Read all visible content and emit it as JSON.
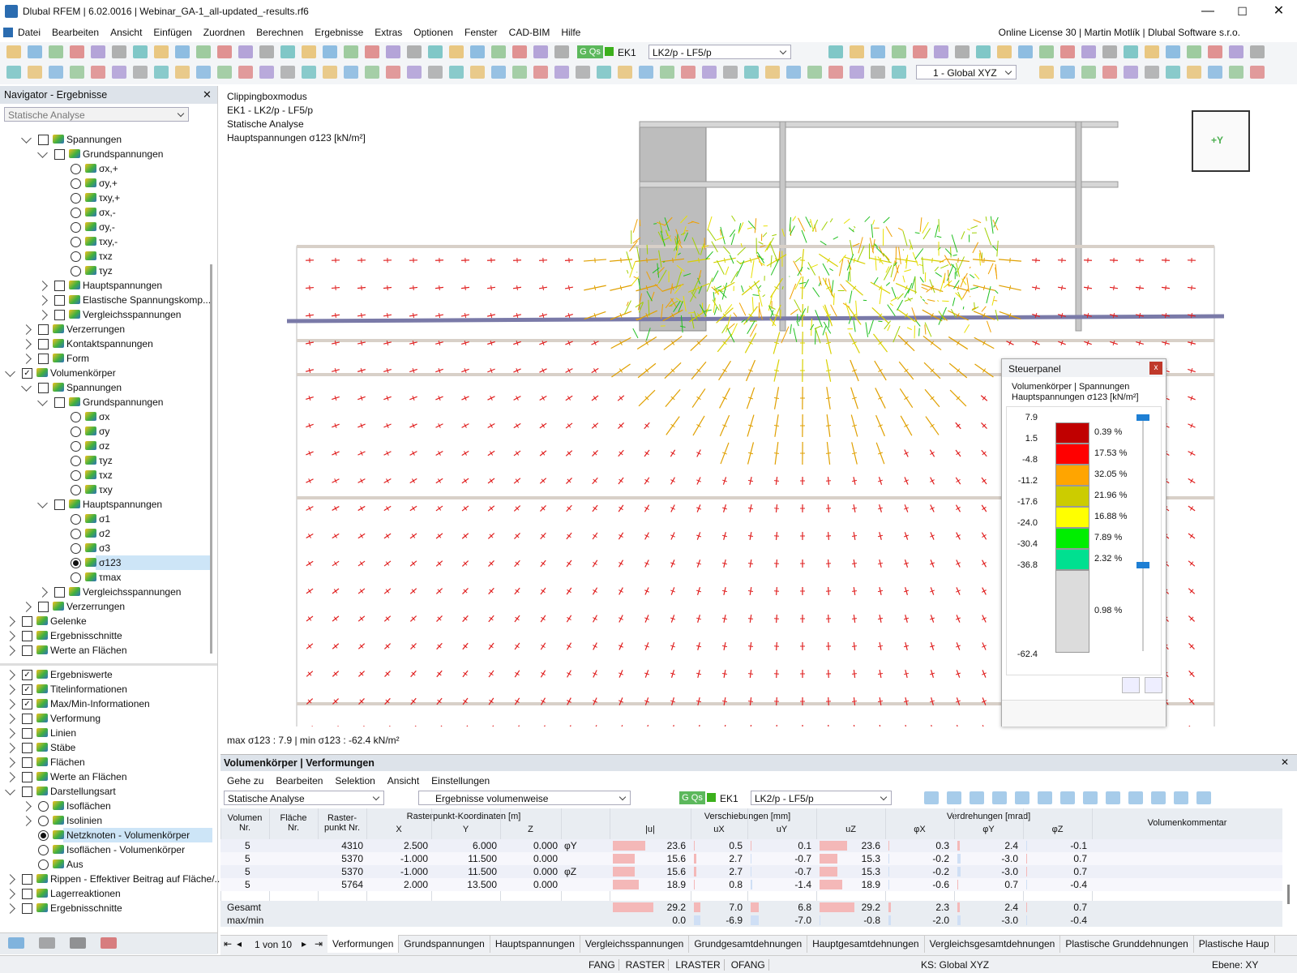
{
  "window": {
    "title": "Dlubal RFEM | 6.02.0016 | Webinar_GA-1_all-updated_-results.rf6"
  },
  "menu": {
    "items": [
      "Datei",
      "Bearbeiten",
      "Ansicht",
      "Einfügen",
      "Zuordnen",
      "Berechnen",
      "Ergebnisse",
      "Extras",
      "Optionen",
      "Fenster",
      "CAD-BIM",
      "Hilfe"
    ],
    "license": "Online License 30 | Martin Motlík | Dlubal Software s.r.o."
  },
  "toolbar": {
    "group": "G Qs",
    "combination": "EK1",
    "load_case": "LK2/p - LF5/p",
    "coordinate_system": "1 - Global XYZ"
  },
  "navigator": {
    "title": "Navigator - Ergebnisse",
    "analysis": "Statische Analyse",
    "tree": [
      {
        "label": "Spannungen",
        "level": 1,
        "exp": "open",
        "box": "off"
      },
      {
        "label": "Grundspannungen",
        "level": 2,
        "exp": "open",
        "box": "off"
      },
      {
        "label": "σx,+",
        "level": 3,
        "box": "radio"
      },
      {
        "label": "σy,+",
        "level": 3,
        "box": "radio"
      },
      {
        "label": "τxy,+",
        "level": 3,
        "box": "radio"
      },
      {
        "label": "σx,-",
        "level": 3,
        "box": "radio"
      },
      {
        "label": "σy,-",
        "level": 3,
        "box": "radio"
      },
      {
        "label": "τxy,-",
        "level": 3,
        "box": "radio"
      },
      {
        "label": "τxz",
        "level": 3,
        "box": "radio"
      },
      {
        "label": "τyz",
        "level": 3,
        "box": "radio"
      },
      {
        "label": "Hauptspannungen",
        "level": 2,
        "exp": "closed",
        "box": "off"
      },
      {
        "label": "Elastische Spannungskomp...",
        "level": 2,
        "exp": "closed",
        "box": "off"
      },
      {
        "label": "Vergleichsspannungen",
        "level": 2,
        "exp": "closed",
        "box": "off"
      },
      {
        "label": "Verzerrungen",
        "level": 1,
        "exp": "closed",
        "box": "off"
      },
      {
        "label": "Kontaktspannungen",
        "level": 1,
        "exp": "closed",
        "box": "off"
      },
      {
        "label": "Form",
        "level": 1,
        "exp": "closed",
        "box": "off"
      },
      {
        "label": "Volumenkörper",
        "level": 0,
        "exp": "open",
        "box": "on"
      },
      {
        "label": "Spannungen",
        "level": 1,
        "exp": "open",
        "box": "off"
      },
      {
        "label": "Grundspannungen",
        "level": 2,
        "exp": "open",
        "box": "off"
      },
      {
        "label": "σx",
        "level": 3,
        "box": "radio"
      },
      {
        "label": "σy",
        "level": 3,
        "box": "radio"
      },
      {
        "label": "σz",
        "level": 3,
        "box": "radio"
      },
      {
        "label": "τyz",
        "level": 3,
        "box": "radio"
      },
      {
        "label": "τxz",
        "level": 3,
        "box": "radio"
      },
      {
        "label": "τxy",
        "level": 3,
        "box": "radio"
      },
      {
        "label": "Hauptspannungen",
        "level": 2,
        "exp": "open",
        "box": "off"
      },
      {
        "label": "σ1",
        "level": 3,
        "box": "radio"
      },
      {
        "label": "σ2",
        "level": 3,
        "box": "radio"
      },
      {
        "label": "σ3",
        "level": 3,
        "box": "radio"
      },
      {
        "label": "σ123",
        "level": 3,
        "box": "radio-on",
        "selected": true
      },
      {
        "label": "τmax",
        "level": 3,
        "box": "radio"
      },
      {
        "label": "Vergleichsspannungen",
        "level": 2,
        "exp": "closed",
        "box": "off"
      },
      {
        "label": "Verzerrungen",
        "level": 1,
        "exp": "closed",
        "box": "off"
      },
      {
        "label": "Gelenke",
        "level": 0,
        "exp": "closed",
        "box": "off"
      },
      {
        "label": "Ergebnisschnitte",
        "level": 0,
        "exp": "closed",
        "box": "off"
      },
      {
        "label": "Werte an Flächen",
        "level": 0,
        "exp": "closed",
        "box": "off"
      }
    ],
    "display": [
      {
        "label": "Ergebniswerte",
        "level": 0,
        "exp": "closed",
        "box": "on"
      },
      {
        "label": "Titelinformationen",
        "level": 0,
        "exp": "closed",
        "box": "on"
      },
      {
        "label": "Max/Min-Informationen",
        "level": 0,
        "exp": "closed",
        "box": "on"
      },
      {
        "label": "Verformung",
        "level": 0,
        "exp": "closed",
        "box": "off"
      },
      {
        "label": "Linien",
        "level": 0,
        "exp": "closed",
        "box": "off"
      },
      {
        "label": "Stäbe",
        "level": 0,
        "exp": "closed",
        "box": "off"
      },
      {
        "label": "Flächen",
        "level": 0,
        "exp": "closed",
        "box": "off"
      },
      {
        "label": "Werte an Flächen",
        "level": 0,
        "exp": "closed",
        "box": "off"
      },
      {
        "label": "Darstellungsart",
        "level": 0,
        "exp": "open",
        "box": "off"
      },
      {
        "label": "Isoflächen",
        "level": 1,
        "exp": "closed",
        "box": "radio"
      },
      {
        "label": "Isolinien",
        "level": 1,
        "exp": "closed",
        "box": "radio"
      },
      {
        "label": "Netzknoten - Volumenkörper",
        "level": 1,
        "box": "radio-on",
        "selected": true
      },
      {
        "label": "Isoflächen - Volumenkörper",
        "level": 1,
        "box": "radio"
      },
      {
        "label": "Aus",
        "level": 1,
        "box": "radio"
      },
      {
        "label": "Rippen - Effektiver Beitrag auf Fläche/...",
        "level": 0,
        "exp": "closed",
        "box": "off"
      },
      {
        "label": "Lagerreaktionen",
        "level": 0,
        "exp": "closed",
        "box": "off"
      },
      {
        "label": "Ergebnisschnitte",
        "level": 0,
        "exp": "closed",
        "box": "off"
      }
    ]
  },
  "viewport": {
    "info": [
      "Clippingboxmodus",
      "EK1 - LK2/p - LF5/p",
      "Statische Analyse",
      "Hauptspannungen σ123 [kN/m²]"
    ],
    "maxmin": "max σ123 : 7.9 | min σ123 : -62.4 kN/m²",
    "view_cube": "+Y"
  },
  "panel": {
    "title": "Steuerpanel",
    "subtitle": [
      "Volumenkörper | Spannungen",
      "Hauptspannungen σ123 [kN/m²]"
    ],
    "levels": [
      "7.9",
      "1.5",
      "-4.8",
      "-11.2",
      "-17.6",
      "-24.0",
      "-30.4",
      "-36.8",
      "-62.4"
    ],
    "colors": [
      "#c00000",
      "#ff0000",
      "#ffa500",
      "#cccc00",
      "#ffff00",
      "#00ee00",
      "#00e090",
      "#dcdcdc"
    ],
    "shares": [
      "0.39 %",
      "17.53 %",
      "32.05 %",
      "21.96 %",
      "16.88 %",
      "7.89 %",
      "2.32 %",
      "0.98 %"
    ]
  },
  "table": {
    "title": "Volumenkörper | Verformungen",
    "menu": [
      "Gehe zu",
      "Bearbeiten",
      "Selektion",
      "Ansicht",
      "Einstellungen"
    ],
    "analysis": "Statische Analyse",
    "mode": "Ergebnisse volumenweise",
    "group": "G Qs",
    "combination": "EK1",
    "load_case": "LK2/p - LF5/p",
    "headers": {
      "volume": "Volumen\nNr.",
      "surface": "Fläche\nNr.",
      "point": "Raster-\npunkt Nr.",
      "coords": "Rasterpunkt-Koordinaten [m]",
      "disp": "Verschiebungen [mm]",
      "rot": "Verdrehungen [mrad]",
      "comment": "Volumenkommentar",
      "sub": [
        "X",
        "Y",
        "Z",
        "|u|",
        "uX",
        "uY",
        "uZ",
        "φX",
        "φY",
        "φZ"
      ]
    },
    "rows": [
      {
        "cells": [
          "5",
          "4310",
          "2.500",
          "6.000",
          "0.000"
        ],
        "note": "φY",
        "values": [
          "23.6",
          "0.5",
          "0.1",
          "23.6",
          "0.3",
          "2.4",
          "-0.1"
        ]
      },
      {
        "cells": [
          "5",
          "5370",
          "-1.000",
          "11.500",
          "0.000"
        ],
        "values": [
          "15.6",
          "2.7",
          "-0.7",
          "15.3",
          "-0.2",
          "-3.0",
          "0.7"
        ]
      },
      {
        "cells": [
          "5",
          "5370",
          "-1.000",
          "11.500",
          "0.000"
        ],
        "note": "φZ",
        "values": [
          "15.6",
          "2.7",
          "-0.7",
          "15.3",
          "-0.2",
          "-3.0",
          "0.7"
        ]
      },
      {
        "cells": [
          "5",
          "5764",
          "2.000",
          "13.500",
          "0.000"
        ],
        "values": [
          "18.9",
          "0.8",
          "-1.4",
          "18.9",
          "-0.6",
          "0.7",
          "-0.4"
        ]
      }
    ],
    "total": {
      "label": "Gesamt",
      "values": [
        "29.2",
        "7.0",
        "6.8",
        "29.2",
        "2.3",
        "2.4",
        "0.7"
      ]
    },
    "maxmin": {
      "label": "max/min",
      "values": [
        "0.0",
        "-6.9",
        "-7.0",
        "-0.8",
        "-2.0",
        "-3.0",
        "-0.4"
      ]
    },
    "pager": "1 von 10",
    "tabs": [
      "Verformungen",
      "Grundspannungen",
      "Hauptspannungen",
      "Vergleichsspannungen",
      "Grundgesamtdehnungen",
      "Hauptgesamtdehnungen",
      "Vergleichsgesamtdehnungen",
      "Plastische Grunddehnungen",
      "Plastische Haup"
    ]
  },
  "status": {
    "toggles": [
      "FANG",
      "RASTER",
      "LRASTER",
      "OFANG"
    ],
    "cs": "KS: Global XYZ",
    "plane": "Ebene: XY"
  }
}
